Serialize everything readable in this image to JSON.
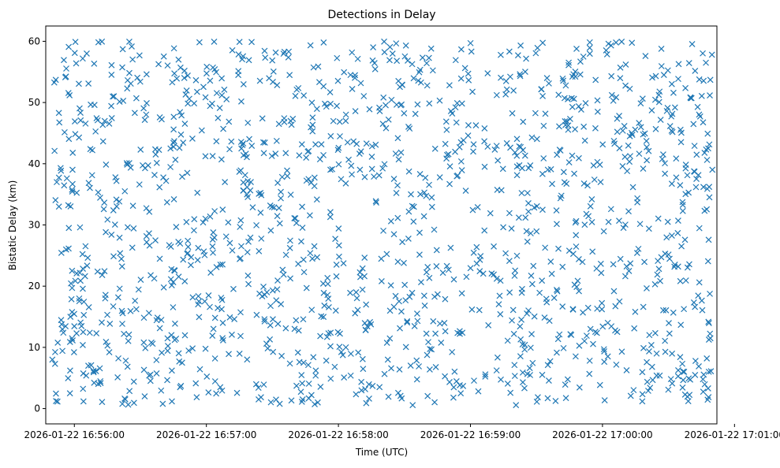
{
  "chart_data": {
    "type": "scatter",
    "title": "Detections in Delay",
    "xlabel": "Time (UTC)",
    "ylabel": "Bistatic Delay (km)",
    "xlim": [
      "2026-01-22 16:55:47",
      "2026-01-22 17:00:52"
    ],
    "ylim": [
      -2.5,
      62.5
    ],
    "x_ticks": [
      "2026-01-22 16:56:00",
      "2026-01-22 16:57:00",
      "2026-01-22 16:58:00",
      "2026-01-22 16:59:00",
      "2026-01-22 17:00:00",
      "2026-01-22 17:01:00"
    ],
    "y_ticks": [
      0,
      10,
      20,
      30,
      40,
      50,
      60
    ],
    "grid": false,
    "marker": "x",
    "color": "#1f77b4",
    "x_start": "2026-01-22 16:55:50",
    "x_end": "2026-01-22 17:00:50",
    "y_range": [
      0.5,
      60
    ],
    "point_count": 1500,
    "series": [
      {
        "points": [
          [
            "2026-01-22 16:55:55",
            12.4
          ],
          [
            "2026-01-22 16:56:01",
            12.3
          ],
          [
            "2026-01-22 16:56:04",
            12.5
          ],
          [
            "2026-01-22 16:56:07",
            12.4
          ],
          [
            "2026-01-22 16:56:10",
            12.3
          ],
          [
            "2026-01-22 16:55:51",
            42.1
          ],
          [
            "2026-01-22 16:55:52",
            37.0
          ],
          [
            "2026-01-22 16:55:53",
            33.0
          ],
          [
            "2026-01-22 16:55:50",
            8.0
          ],
          [
            "2026-01-22 16:55:58",
            2.5
          ],
          [
            "2026-01-22 16:56:20",
            8.2
          ],
          [
            "2026-01-22 16:59:22",
            31.2
          ],
          [
            "2026-01-22 16:59:25",
            31.2
          ],
          [
            "2026-01-22 17:00:47",
            56.5
          ],
          [
            "2026-01-22 17:00:48",
            3.3
          ]
        ]
      }
    ]
  }
}
